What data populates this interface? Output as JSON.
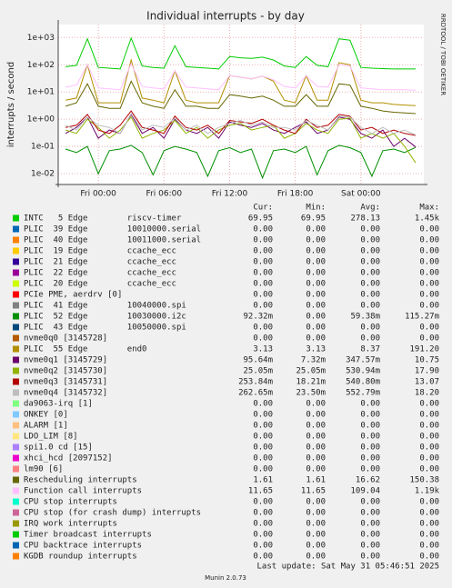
{
  "chart_data": {
    "type": "line",
    "title": "Individual interrupts - by day",
    "y_label": "interrupts / second",
    "side_note": "RRDTOOL / TOBI OETIKER",
    "log_y": true,
    "grid": true,
    "ylim": [
      0.004,
      3000
    ],
    "yticks": [
      {
        "value": 1000,
        "label": "1e+03"
      },
      {
        "value": 100,
        "label": "1e+02"
      },
      {
        "value": 10,
        "label": "1e+01"
      },
      {
        "value": 1,
        "label": "1e+00"
      },
      {
        "value": 0.1,
        "label": "1e-01"
      },
      {
        "value": 0.01,
        "label": "1e-02"
      }
    ],
    "xlim": [
      -3.67,
      29.75
    ],
    "xticks": [
      {
        "value": 0,
        "label": "Fri 00:00"
      },
      {
        "value": 6,
        "label": "Fri 06:00"
      },
      {
        "value": 12,
        "label": "Fri 12:00"
      },
      {
        "value": 18,
        "label": "Fri 18:00"
      },
      {
        "value": 24,
        "label": "Sat 00:00"
      }
    ],
    "x": [
      -3,
      -2,
      -1,
      0,
      1,
      2,
      3,
      4,
      5,
      6,
      7,
      8,
      9,
      10,
      11,
      12,
      13,
      14,
      15,
      16,
      17,
      18,
      19,
      20,
      21,
      22,
      23,
      24,
      25,
      26,
      27,
      28,
      29
    ],
    "columns": [
      "Cur:",
      "Min:",
      "Avg:",
      "Max:"
    ],
    "series": [
      {
        "name": "INTC   5 Edge        riscv-timer",
        "color": "#00CC00",
        "stats": [
          "69.95",
          "69.95",
          "278.13",
          "1.45k"
        ],
        "values": [
          85,
          95,
          900,
          80,
          75,
          70,
          950,
          90,
          80,
          75,
          500,
          85,
          80,
          75,
          70,
          200,
          180,
          170,
          190,
          150,
          90,
          80,
          200,
          95,
          85,
          900,
          800,
          80,
          75,
          72,
          70,
          70,
          70
        ]
      },
      {
        "name": "PLIC  39 Edge        10010000.serial",
        "color": "#0066B3",
        "stats": [
          "0.00",
          "0.00",
          "0.00",
          "0.00"
        ]
      },
      {
        "name": "PLIC  40 Edge        10011000.serial",
        "color": "#FF8000",
        "stats": [
          "0.00",
          "0.00",
          "0.00",
          "0.00"
        ]
      },
      {
        "name": "PLIC  19 Edge        ccache_ecc",
        "color": "#FFCC00",
        "stats": [
          "0.00",
          "0.00",
          "0.00",
          "0.00"
        ]
      },
      {
        "name": "PLIC  21 Edge        ccache_ecc",
        "color": "#330099",
        "stats": [
          "0.00",
          "0.00",
          "0.00",
          "0.00"
        ]
      },
      {
        "name": "PLIC  22 Edge        ccache_ecc",
        "color": "#990099",
        "stats": [
          "0.00",
          "0.00",
          "0.00",
          "0.00"
        ]
      },
      {
        "name": "PLIC  20 Edge        ccache_ecc",
        "color": "#CCFF00",
        "stats": [
          "0.00",
          "0.00",
          "0.00",
          "0.00"
        ]
      },
      {
        "name": "PCIe PME, aerdrv [0]",
        "color": "#FF0000",
        "stats": [
          "0.00",
          "0.00",
          "0.00",
          "0.00"
        ]
      },
      {
        "name": "PLIC  41 Edge        10040000.spi",
        "color": "#808080",
        "stats": [
          "0.00",
          "0.00",
          "0.00",
          "0.00"
        ]
      },
      {
        "name": "PLIC  52 Edge        10030000.i2c",
        "color": "#008F00",
        "stats": [
          "92.32m",
          "0.00",
          "59.38m",
          "115.27m"
        ],
        "values": [
          0.08,
          0.06,
          0.1,
          0.01,
          0.07,
          0.08,
          0.11,
          0.06,
          0.009,
          0.07,
          0.1,
          0.08,
          0.06,
          0.008,
          0.07,
          0.09,
          0.06,
          0.08,
          0.007,
          0.07,
          0.08,
          0.06,
          0.1,
          0.009,
          0.07,
          0.11,
          0.09,
          0.06,
          0.008,
          0.07,
          0.08,
          0.06,
          0.0923
        ]
      },
      {
        "name": "PLIC  43 Edge        10050000.spi",
        "color": "#00487D",
        "stats": [
          "0.00",
          "0.00",
          "0.00",
          "0.00"
        ]
      },
      {
        "name": "nvme0q0 [3145728]",
        "color": "#B35A00",
        "stats": [
          "0.00",
          "0.00",
          "0.00",
          "0.00"
        ]
      },
      {
        "name": "PLIC  55 Edge        end0",
        "color": "#B38F00",
        "stats": [
          "3.13",
          "3.13",
          "8.37",
          "191.20"
        ],
        "values": [
          5,
          6,
          100,
          4,
          4,
          4,
          150,
          6,
          5,
          4,
          60,
          5,
          4,
          4,
          4,
          40,
          35,
          30,
          38,
          25,
          5,
          4,
          40,
          5,
          5,
          120,
          100,
          5,
          4,
          4,
          3.5,
          3.3,
          3.13
        ]
      },
      {
        "name": "nvme0q1 [3145729]",
        "color": "#6B006B",
        "stats": [
          "95.64m",
          "7.32m",
          "347.57m",
          "10.75"
        ],
        "values": [
          0.3,
          0.5,
          1.2,
          0.2,
          0.4,
          0.3,
          1.5,
          0.3,
          0.5,
          0.2,
          1,
          0.4,
          0.3,
          0.5,
          0.2,
          0.8,
          0.6,
          0.5,
          0.7,
          0.4,
          0.3,
          0.5,
          0.8,
          0.3,
          0.4,
          1.2,
          1,
          0.3,
          0.2,
          0.4,
          0.1,
          0.2,
          0.0956
        ]
      },
      {
        "name": "nvme0q2 [3145730]",
        "color": "#8FB300",
        "stats": [
          "25.05m",
          "25.05m",
          "530.94m",
          "17.90"
        ],
        "values": [
          0.4,
          0.3,
          1,
          0.5,
          0.2,
          0.4,
          1.2,
          0.2,
          0.3,
          0.4,
          0.9,
          0.3,
          0.5,
          0.2,
          0.4,
          0.6,
          0.7,
          0.4,
          0.5,
          0.6,
          0.2,
          0.3,
          0.7,
          0.4,
          0.3,
          1,
          1.1,
          0.2,
          0.3,
          0.2,
          0.3,
          0.1,
          0.025
        ]
      },
      {
        "name": "nvme0q3 [3145731]",
        "color": "#B30000",
        "stats": [
          "253.84m",
          "18.21m",
          "540.80m",
          "13.07"
        ],
        "values": [
          0.5,
          0.6,
          1.5,
          0.4,
          0.3,
          0.6,
          2,
          0.5,
          0.4,
          0.3,
          1.3,
          0.5,
          0.4,
          0.6,
          0.3,
          0.9,
          0.8,
          0.7,
          1,
          0.6,
          0.4,
          0.3,
          1,
          0.5,
          0.6,
          1.5,
          1.3,
          0.4,
          0.5,
          0.3,
          0.4,
          0.3,
          0.254
        ]
      },
      {
        "name": "nvme0q4 [3145732]",
        "color": "#BEBEBE",
        "stats": [
          "262.65m",
          "23.50m",
          "552.79m",
          "18.20"
        ],
        "values": [
          0.6,
          0.4,
          1.2,
          0.6,
          0.5,
          0.3,
          1.6,
          0.4,
          0.6,
          0.5,
          1.1,
          0.4,
          0.6,
          0.3,
          0.5,
          0.7,
          0.9,
          0.6,
          0.8,
          0.5,
          0.5,
          0.4,
          0.9,
          0.6,
          0.4,
          1.3,
          1.2,
          0.5,
          0.3,
          0.5,
          0.3,
          0.4,
          0.263
        ]
      },
      {
        "name": "da9063-irq [1]",
        "color": "#80FF80",
        "stats": [
          "0.00",
          "0.00",
          "0.00",
          "0.00"
        ]
      },
      {
        "name": "ONKEY [0]",
        "color": "#80C9FF",
        "stats": [
          "0.00",
          "0.00",
          "0.00",
          "0.00"
        ]
      },
      {
        "name": "ALARM [1]",
        "color": "#FFC080",
        "stats": [
          "0.00",
          "0.00",
          "0.00",
          "0.00"
        ]
      },
      {
        "name": "LDO_LIM [8]",
        "color": "#FFE680",
        "stats": [
          "0.00",
          "0.00",
          "0.00",
          "0.00"
        ]
      },
      {
        "name": "spi1.0 cd [15]",
        "color": "#AA80FF",
        "stats": [
          "0.00",
          "0.00",
          "0.00",
          "0.00"
        ]
      },
      {
        "name": "xhci_hcd [2097152]",
        "color": "#EE00CC",
        "stats": [
          "0.00",
          "0.00",
          "0.00",
          "0.00"
        ]
      },
      {
        "name": "lm90 [6]",
        "color": "#FF8080",
        "stats": [
          "0.00",
          "0.00",
          "0.00",
          "0.00"
        ]
      },
      {
        "name": "Rescheduling interrupts",
        "color": "#666600",
        "stats": [
          "1.61",
          "1.61",
          "16.62",
          "150.38"
        ],
        "values": [
          3,
          4,
          20,
          3,
          2.5,
          2.5,
          25,
          4,
          3,
          2.5,
          12,
          3,
          3,
          2.5,
          2.5,
          8,
          7,
          6,
          7,
          5,
          3,
          3,
          8,
          3,
          3,
          20,
          18,
          3,
          2.5,
          2,
          1.8,
          1.7,
          1.61
        ]
      },
      {
        "name": "Function call interrupts",
        "color": "#FFBFFF",
        "stats": [
          "11.65",
          "11.65",
          "109.04",
          "1.19k"
        ],
        "values": [
          15,
          18,
          100,
          14,
          13,
          12,
          110,
          16,
          14,
          13,
          60,
          15,
          14,
          13,
          12,
          40,
          35,
          30,
          38,
          28,
          16,
          14,
          40,
          16,
          15,
          100,
          90,
          14,
          13,
          12,
          12,
          12,
          11.65
        ]
      },
      {
        "name": "CPU stop interrupts",
        "color": "#00FFCC",
        "stats": [
          "0.00",
          "0.00",
          "0.00",
          "0.00"
        ]
      },
      {
        "name": "CPU stop (for crash dump) interrupts",
        "color": "#CC6699",
        "stats": [
          "0.00",
          "0.00",
          "0.00",
          "0.00"
        ]
      },
      {
        "name": "IRQ work interrupts",
        "color": "#999900",
        "stats": [
          "0.00",
          "0.00",
          "0.00",
          "0.00"
        ]
      },
      {
        "name": "Timer broadcast interrupts",
        "color": "#00CC00",
        "stats": [
          "0.00",
          "0.00",
          "0.00",
          "0.00"
        ]
      },
      {
        "name": "CPU backtrace interrupts",
        "color": "#0066B3",
        "stats": [
          "0.00",
          "0.00",
          "0.00",
          "0.00"
        ]
      },
      {
        "name": "KGDB roundup interrupts",
        "color": "#FF8000",
        "stats": [
          "0.00",
          "0.00",
          "0.00",
          "0.00"
        ]
      }
    ],
    "last_update": "Last update: Sat May 31 05:46:51 2025",
    "footer": "Munin 2.0.73"
  }
}
